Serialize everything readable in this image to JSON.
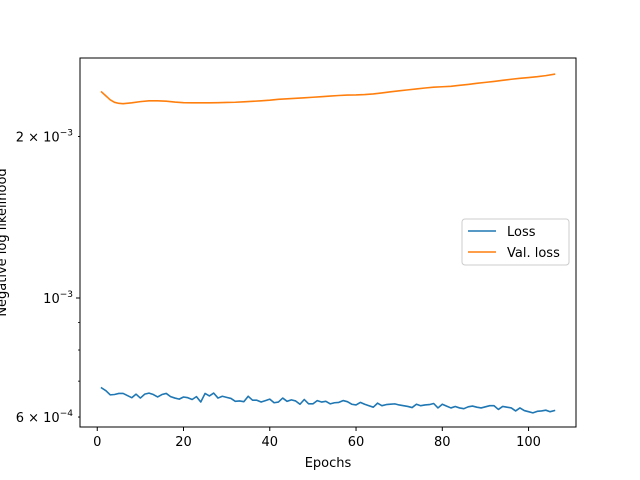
{
  "chart_data": {
    "type": "line",
    "title": "",
    "xlabel": "Epochs",
    "ylabel": "Negative log likelihood",
    "yscale": "log",
    "xlim": [
      -4,
      111
    ],
    "ylim": [
      0.000575,
      0.0028
    ],
    "grid": false,
    "legend_position": "center-right",
    "x_ticks": [
      0,
      20,
      40,
      60,
      80,
      100
    ],
    "x_tick_labels": [
      "0",
      "20",
      "40",
      "60",
      "80",
      "100"
    ],
    "y_ticks": [
      0.0006,
      0.001,
      0.002
    ],
    "y_tick_labels": [
      {
        "mantissa": "6",
        "exponent": "−4"
      },
      {
        "mantissa": "10",
        "exponent": "−3"
      },
      {
        "mantissa": "2",
        "exponent": "−3"
      }
    ],
    "series": [
      {
        "name": "Loss",
        "color": "#1f77b4",
        "points": [
          [
            1,
            0.00068
          ],
          [
            2,
            0.000672
          ],
          [
            3,
            0.00066
          ],
          [
            4,
            0.000661
          ],
          [
            5,
            0.000664
          ],
          [
            6,
            0.000664
          ],
          [
            7,
            0.000658
          ],
          [
            8,
            0.000652
          ],
          [
            9,
            0.000662
          ],
          [
            10,
            0.000651
          ],
          [
            11,
            0.000662
          ],
          [
            12,
            0.000665
          ],
          [
            13,
            0.000661
          ],
          [
            14,
            0.000654
          ],
          [
            15,
            0.000661
          ],
          [
            16,
            0.000664
          ],
          [
            17,
            0.000655
          ],
          [
            18,
            0.000651
          ],
          [
            19,
            0.000648
          ],
          [
            20,
            0.000654
          ],
          [
            21,
            0.000652
          ],
          [
            22,
            0.000647
          ],
          [
            23,
            0.000655
          ],
          [
            24,
            0.00064
          ],
          [
            25,
            0.000664
          ],
          [
            26,
            0.000657
          ],
          [
            27,
            0.000665
          ],
          [
            28,
            0.000651
          ],
          [
            29,
            0.000656
          ],
          [
            30,
            0.000653
          ],
          [
            31,
            0.00065
          ],
          [
            32,
            0.000642
          ],
          [
            33,
            0.000643
          ],
          [
            34,
            0.000641
          ],
          [
            35,
            0.000656
          ],
          [
            36,
            0.000645
          ],
          [
            37,
            0.000645
          ],
          [
            38,
            0.00064
          ],
          [
            39,
            0.000644
          ],
          [
            40,
            0.000648
          ],
          [
            41,
            0.000638
          ],
          [
            42,
            0.00064
          ],
          [
            43,
            0.000651
          ],
          [
            44,
            0.000642
          ],
          [
            45,
            0.000646
          ],
          [
            46,
            0.000643
          ],
          [
            47,
            0.000634
          ],
          [
            48,
            0.000647
          ],
          [
            49,
            0.000635
          ],
          [
            50,
            0.000635
          ],
          [
            51,
            0.000644
          ],
          [
            52,
            0.00064
          ],
          [
            53,
            0.000642
          ],
          [
            54,
            0.000635
          ],
          [
            55,
            0.000638
          ],
          [
            56,
            0.000639
          ],
          [
            57,
            0.000644
          ],
          [
            58,
            0.000641
          ],
          [
            59,
            0.000634
          ],
          [
            60,
            0.000632
          ],
          [
            61,
            0.000639
          ],
          [
            62,
            0.000634
          ],
          [
            63,
            0.00063
          ],
          [
            64,
            0.000626
          ],
          [
            65,
            0.000637
          ],
          [
            66,
            0.00063
          ],
          [
            67,
            0.000633
          ],
          [
            68,
            0.000634
          ],
          [
            69,
            0.000635
          ],
          [
            70,
            0.000632
          ],
          [
            71,
            0.00063
          ],
          [
            72,
            0.000628
          ],
          [
            73,
            0.000625
          ],
          [
            74,
            0.000634
          ],
          [
            75,
            0.00063
          ],
          [
            76,
            0.000632
          ],
          [
            77,
            0.000633
          ],
          [
            78,
            0.000636
          ],
          [
            79,
            0.000624
          ],
          [
            80,
            0.000634
          ],
          [
            81,
            0.000629
          ],
          [
            82,
            0.000624
          ],
          [
            83,
            0.000628
          ],
          [
            84,
            0.000624
          ],
          [
            85,
            0.000622
          ],
          [
            86,
            0.000627
          ],
          [
            87,
            0.000629
          ],
          [
            88,
            0.000626
          ],
          [
            89,
            0.000624
          ],
          [
            90,
            0.000627
          ],
          [
            91,
            0.00063
          ],
          [
            92,
            0.00063
          ],
          [
            93,
            0.00062
          ],
          [
            94,
            0.000628
          ],
          [
            95,
            0.000626
          ],
          [
            96,
            0.000624
          ],
          [
            97,
            0.000616
          ],
          [
            98,
            0.000624
          ],
          [
            99,
            0.000617
          ],
          [
            100,
            0.000614
          ],
          [
            101,
            0.000611
          ],
          [
            102,
            0.000615
          ],
          [
            103,
            0.000616
          ],
          [
            104,
            0.000618
          ],
          [
            105,
            0.000614
          ],
          [
            106,
            0.000617
          ]
        ]
      },
      {
        "name": "Val. loss",
        "color": "#ff7f0e",
        "points": [
          [
            1,
            0.00242
          ],
          [
            2,
            0.00238
          ],
          [
            3,
            0.00234
          ],
          [
            4,
            0.002315
          ],
          [
            5,
            0.002305
          ],
          [
            6,
            0.002302
          ],
          [
            8,
            0.00231
          ],
          [
            10,
            0.002322
          ],
          [
            12,
            0.00233
          ],
          [
            14,
            0.00233
          ],
          [
            16,
            0.002326
          ],
          [
            18,
            0.002318
          ],
          [
            20,
            0.002312
          ],
          [
            22,
            0.00231
          ],
          [
            24,
            0.00231
          ],
          [
            26,
            0.00231
          ],
          [
            28,
            0.002312
          ],
          [
            30,
            0.002314
          ],
          [
            32,
            0.002316
          ],
          [
            34,
            0.00232
          ],
          [
            36,
            0.002325
          ],
          [
            38,
            0.00233
          ],
          [
            40,
            0.002336
          ],
          [
            42,
            0.002345
          ],
          [
            44,
            0.00235
          ],
          [
            46,
            0.002355
          ],
          [
            48,
            0.00236
          ],
          [
            50,
            0.002366
          ],
          [
            52,
            0.002372
          ],
          [
            54,
            0.002378
          ],
          [
            56,
            0.002384
          ],
          [
            58,
            0.002388
          ],
          [
            60,
            0.00239
          ],
          [
            62,
            0.002394
          ],
          [
            64,
            0.0024
          ],
          [
            66,
            0.00241
          ],
          [
            68,
            0.002422
          ],
          [
            70,
            0.002432
          ],
          [
            72,
            0.002442
          ],
          [
            74,
            0.002452
          ],
          [
            76,
            0.002462
          ],
          [
            78,
            0.00247
          ],
          [
            80,
            0.002475
          ],
          [
            82,
            0.00248
          ],
          [
            84,
            0.00249
          ],
          [
            86,
            0.0025
          ],
          [
            88,
            0.002512
          ],
          [
            90,
            0.002522
          ],
          [
            92,
            0.002532
          ],
          [
            94,
            0.002544
          ],
          [
            96,
            0.002556
          ],
          [
            98,
            0.002566
          ],
          [
            100,
            0.002575
          ],
          [
            102,
            0.002584
          ],
          [
            104,
            0.002596
          ],
          [
            106,
            0.002612
          ]
        ]
      }
    ]
  }
}
